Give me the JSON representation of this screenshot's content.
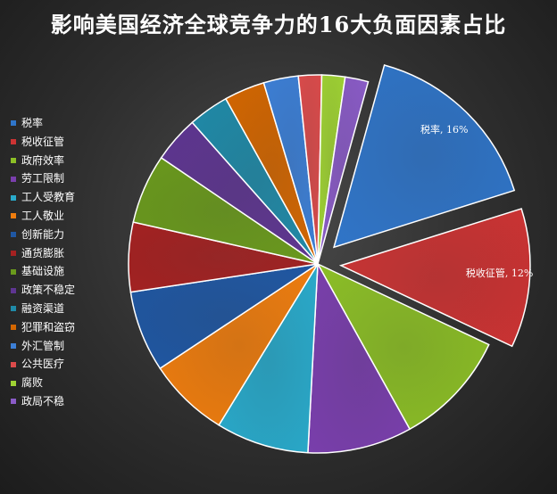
{
  "chart_data": {
    "type": "pie",
    "title": "影响美国经济全球竞争力的16大负面因素占比",
    "categories": [
      "税率",
      "税收征管",
      "政府效率",
      "劳工限制",
      "工人受教育",
      "工人敬业",
      "创新能力",
      "通货膨胀",
      "基础设施",
      "政策不稳定",
      "融资渠道",
      "犯罪和盗窃",
      "外汇管制",
      "公共医疗",
      "腐败",
      "政局不稳"
    ],
    "values": [
      16,
      12,
      10,
      9,
      8,
      7,
      7,
      6,
      6,
      4,
      3.5,
      3.5,
      3,
      2,
      2,
      2
    ],
    "colors": [
      "#2f75c9",
      "#cc3333",
      "#8cbf26",
      "#7a3fad",
      "#29aacb",
      "#ef7d0e",
      "#1f57a3",
      "#a42121",
      "#6a9a1c",
      "#5e3591",
      "#1f8aa8",
      "#d36600",
      "#3c7fd6",
      "#db4b4b",
      "#9fd233",
      "#8a5bc7"
    ],
    "data_labels": [
      {
        "category": "税率",
        "value": "16%"
      },
      {
        "category": "税收征管",
        "value": "12%"
      }
    ],
    "exploded": [
      "税率",
      "税收征管"
    ],
    "legend_position": "left"
  }
}
